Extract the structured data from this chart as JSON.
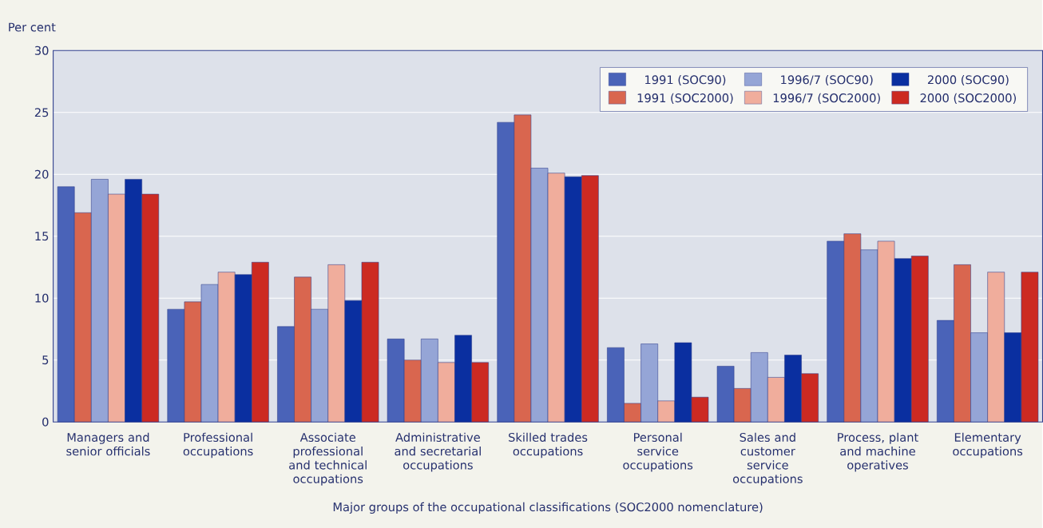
{
  "chart_data": {
    "type": "bar",
    "ylabel": "Per cent",
    "xlabel": "Major groups of the occupational classifications (SOC2000 nomenclature)",
    "categories": [
      "Managers and senior officials",
      "Professional occupations",
      "Associate professional and technical occupations",
      "Administrative and secretarial occupations",
      "Skilled trades occupations",
      "Personal service occupations",
      "Sales and customer service occupations",
      "Process, plant and machine operatives",
      "Elementary occupations"
    ],
    "series": [
      {
        "name": "1991 (SOC90)",
        "color": "#4a63b8",
        "values": [
          19.0,
          9.1,
          7.7,
          6.7,
          24.2,
          6.0,
          4.5,
          14.6,
          8.2
        ]
      },
      {
        "name": "1991 (SOC2000)",
        "color": "#d9664f",
        "values": [
          16.9,
          9.7,
          11.7,
          5.0,
          24.8,
          1.5,
          2.7,
          15.2,
          12.7
        ]
      },
      {
        "name": "1996/7 (SOC90)",
        "color": "#95a5d6",
        "values": [
          19.6,
          11.1,
          9.1,
          6.7,
          20.5,
          6.3,
          5.6,
          13.9,
          7.2
        ]
      },
      {
        "name": "1996/7 (SOC2000)",
        "color": "#f0ad9c",
        "values": [
          18.4,
          12.1,
          12.7,
          4.8,
          20.1,
          1.7,
          3.6,
          14.6,
          12.1
        ]
      },
      {
        "name": "2000 (SOC90)",
        "color": "#0a2fa0",
        "values": [
          19.6,
          11.9,
          9.8,
          7.0,
          19.8,
          6.4,
          5.4,
          13.2,
          7.2
        ]
      },
      {
        "name": "2000 (SOC2000)",
        "color": "#cc2a22",
        "values": [
          18.4,
          12.9,
          12.9,
          4.8,
          19.9,
          2.0,
          3.9,
          13.4,
          12.1
        ]
      }
    ],
    "ylim": [
      0,
      30
    ],
    "yticks": [
      0,
      5,
      10,
      15,
      20,
      25,
      30
    ],
    "grid": "y",
    "legend": "top right"
  }
}
